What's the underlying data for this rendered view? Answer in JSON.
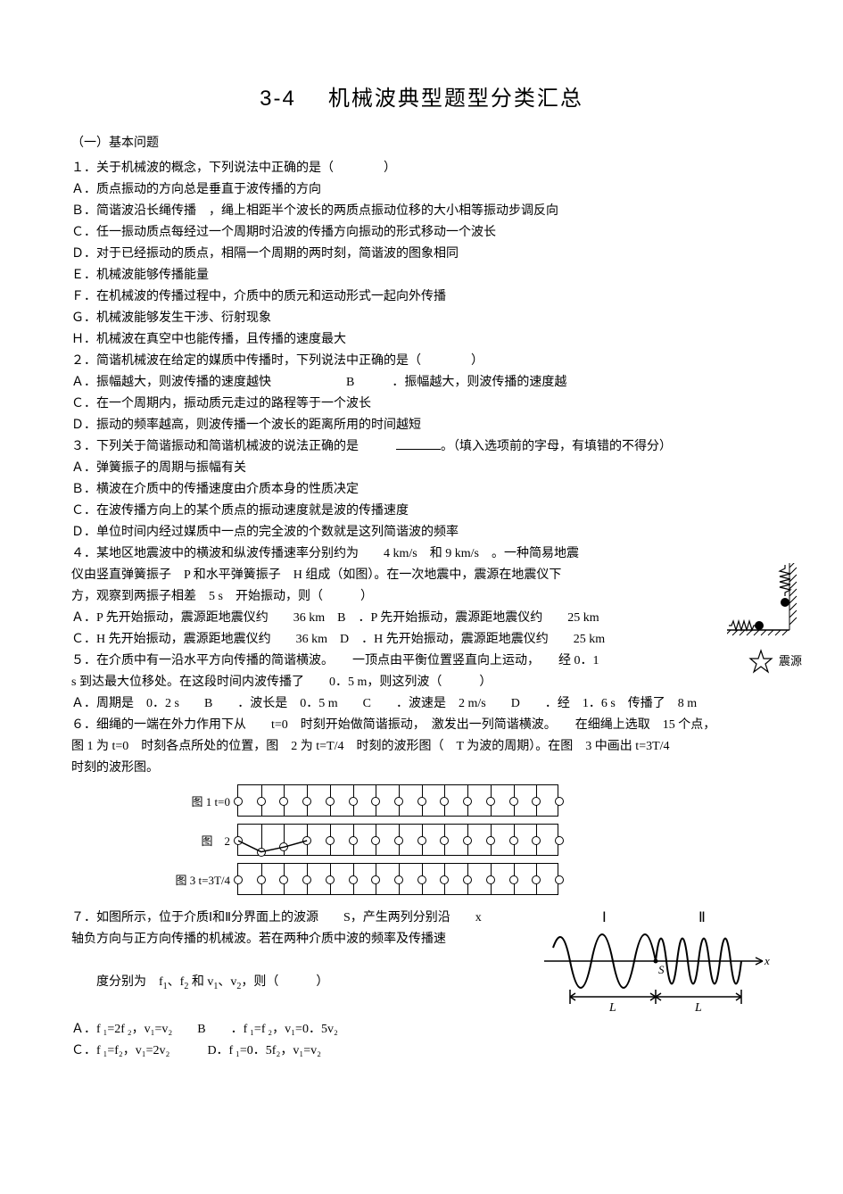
{
  "title_num": "3-4",
  "title_text": "机械波典型题型分类汇总",
  "section1": "（一）基本问题",
  "lines": [
    "１．关于机械波的概念，下列说法中正确的是（　　　　）",
    "Ａ．质点振动的方向总是垂直于波传播的方向",
    "Ｂ．简谐波沿长绳传播　，绳上相距半个波长的两质点振动位移的大小相等振动步调反向",
    "Ｃ．任一振动质点每经过一个周期时沿波的传播方向振动的形式移动一个波长",
    "Ｄ．对于已经振动的质点，相隔一个周期的两时刻，简谐波的图象相同",
    "Ｅ．机械波能够传播能量",
    "Ｆ．在机械波的传播过程中，介质中的质元和运动形式一起向外传播",
    "Ｇ．机械波能够发生干涉、衍射现象",
    "Ｈ．机械波在真空中也能传播，且传播的速度最大",
    "２．简谐机械波在给定的媒质中传播时，下列说法中正确的是（　　　　）",
    "Ａ．振幅越大，则波传播的速度越快　　　　　　B　　　．振幅越大，则波传播的速度越",
    "Ｃ．在一个周期内，振动质元走过的路程等于一个波长",
    "Ｄ．振动的频率越高，则波传播一个波长的距离所用的时间越短",
    "３．下列关于简谐振动和简谐机械波的说法正确的是　　",
    "Ａ．弹簧振子的周期与振幅有关",
    "Ｂ．横波在介质中的传播速度由介质本身的性质决定",
    "Ｃ．在波传播方向上的某个质点的振动速度就是波的传播速度",
    "Ｄ．单位时间内经过媒质中一点的完全波的个数就是这列简谐波的频率",
    "４．某地区地震波中的横波和纵波传播速率分别约为　　4 km/s　和 9 km/s　。一种简易地震",
    "仪由竖直弹簧振子　P 和水平弹簧振子　H 组成（如图）。在一次地震中，震源在地震仪下",
    "方，观察到两振子相差　5 s　开始振动，则（　　　）",
    "Ａ．P 先开始振动，震源距地震仪约　　36 km　B　．P 先开始振动，震源距地震仪约　　25 km",
    "Ｃ．H 先开始振动，震源距地震仪约　　36 km　D　．H 先开始振动，震源距地震仪约　　25 km",
    "５．在介质中有一沿水平方向传播的简谐横波。　　一顶点由平衡位置竖直向上运动，　　经 0．1",
    "s 到达最大位移处。在这段时间内波传播了　　0．5 m，则这列波（　　　）",
    "Ａ．周期是　0．2 s　　B　　．波长是　0．5 m　　C　　．波速是　2 m/s　　D　　．经　1．6 s　传播了　8 m",
    "６．细绳的一端在外力作用下从　　t=0　时刻开始做简谐振动，　激发出一列简谐横波。　　在细绳上选取　15 个点，",
    "图 1 为 t=0　时刻各点所处的位置，图　2 为 t=T/4　时刻的波形图（　T 为波的周期）。在图　3 中画出 t=3T/4",
    "时刻的波形图。"
  ],
  "q3_tail": "。（填入选项前的字母，有填错的不得分）",
  "fig_labels": {
    "f1": "图 1 t=0",
    "f2": "图　2",
    "f3": "图 3 t=3T/4"
  },
  "wave_points": 15,
  "fig2_y": [
    0.5,
    0.85,
    0.7,
    0.5,
    0.5,
    0.5,
    0.5,
    0.5,
    0.5,
    0.5,
    0.5,
    0.5,
    0.5,
    0.5,
    0.5
  ],
  "q7": {
    "l1": "７．如图所示，位于介质Ⅰ和Ⅱ分界面上的波源　　S，产生两列分别沿　　x",
    "l2": "轴负方向与正方向传播的机械波。若在两种介质中波的频率及传播速",
    "l3_prefix": "度分别为　f",
    "l3_mid1": "、f",
    "l3_mid2": " 和 v",
    "l3_mid3": "、v",
    "l3_suffix": "，则（　　　）",
    "optA": "Ａ．f ₁=2f ₂，v₁=v₂　　B　　．f ₁=f ₂，v₁=0．5v₂",
    "optC": "Ｃ．f ₁=f₂，v₁=2v₂　　　D．f ₁=0．5f₂，v₁=v₂"
  },
  "spring_label": "震源",
  "q7_fig": {
    "I": "Ⅰ",
    "II": "Ⅱ",
    "S": "S",
    "L": "L",
    "x": "x"
  },
  "colors": {
    "text": "#000000",
    "bg": "#ffffff"
  }
}
